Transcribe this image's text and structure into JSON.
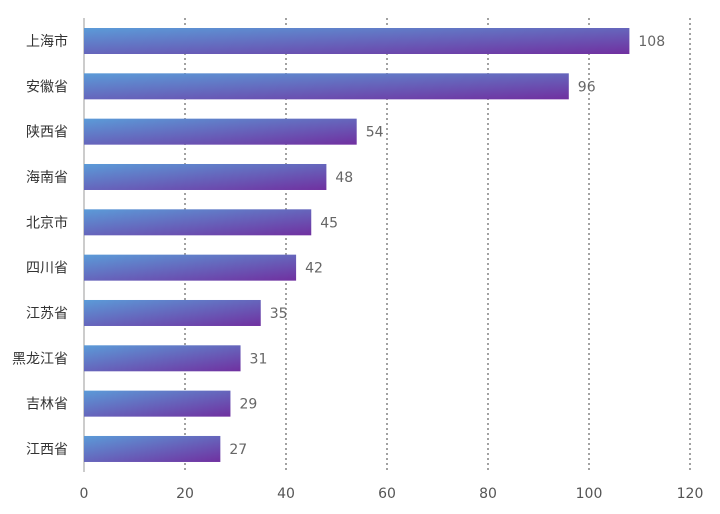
{
  "chart_data": {
    "type": "bar",
    "orientation": "horizontal",
    "categories": [
      "上海市",
      "安徽省",
      "陕西省",
      "海南省",
      "北京市",
      "四川省",
      "江苏省",
      "黑龙江省",
      "吉林省",
      "江西省"
    ],
    "values": [
      108,
      96,
      54,
      48,
      45,
      42,
      35,
      31,
      29,
      27
    ],
    "xlim": [
      0,
      120
    ],
    "xticks": [
      0,
      20,
      40,
      60,
      80,
      100,
      120
    ],
    "title": "",
    "xlabel": "",
    "ylabel": "",
    "grid": "vertical-dotted",
    "colors": {
      "gradient_start": "#5b9bd8",
      "gradient_end": "#7030a0"
    }
  }
}
